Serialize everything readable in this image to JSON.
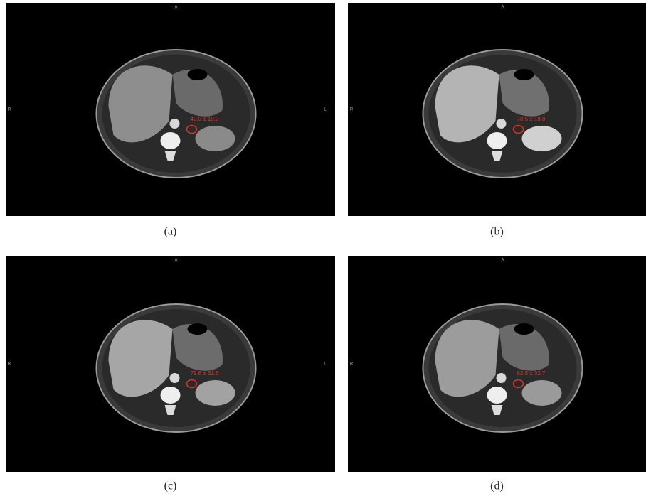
{
  "panels": [
    {
      "label": "(a)",
      "orientation": {
        "top": "A",
        "left": "R",
        "right": "L"
      },
      "measurement": "40.9 ± 10.0"
    },
    {
      "label": "(b)",
      "orientation": {
        "top": "A",
        "left": "R"
      },
      "measurement": "78.5 ± 18.8"
    },
    {
      "label": "(c)",
      "orientation": {
        "top": "A",
        "left": "R",
        "right": "L"
      },
      "measurement": "79.6 ± 31.6"
    },
    {
      "label": "(d)",
      "orientation": {
        "top": "A",
        "left": "R"
      },
      "measurement": "82.5 ± 32.7"
    }
  ]
}
